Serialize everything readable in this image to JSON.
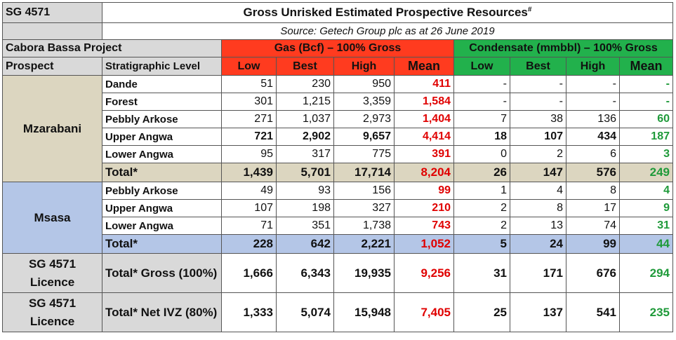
{
  "header": {
    "block": "SG 4571",
    "title": "Gross Unrisked Estimated Prospective Resources",
    "title_sup": "#",
    "source": "Source: Getech Group plc as at 26 June 2019",
    "project": "Cabora Bassa Project",
    "gas_group": "Gas (Bcf) – 100% Gross",
    "cond_group": "Condensate (mmbbl) – 100% Gross",
    "col_prospect": "Prospect",
    "col_strat": "Stratigraphic Level",
    "col_low": "Low",
    "col_best": "Best",
    "col_high": "High",
    "col_mean": "Mean"
  },
  "mzarabani": {
    "name": "Mzarabani",
    "rows": [
      {
        "level": "Dande",
        "gas": [
          "51",
          "230",
          "950",
          "411"
        ],
        "cond": [
          "-",
          "-",
          "-",
          "-"
        ]
      },
      {
        "level": "Forest",
        "gas": [
          "301",
          "1,215",
          "3,359",
          "1,584"
        ],
        "cond": [
          "-",
          "-",
          "-",
          "-"
        ]
      },
      {
        "level": "Pebbly Arkose",
        "gas": [
          "271",
          "1,037",
          "2,973",
          "1,404"
        ],
        "cond": [
          "7",
          "38",
          "136",
          "60"
        ]
      },
      {
        "level": "Upper Angwa",
        "gas": [
          "721",
          "2,902",
          "9,657",
          "4,414"
        ],
        "cond": [
          "18",
          "107",
          "434",
          "187"
        ]
      },
      {
        "level": "Lower Angwa",
        "gas": [
          "95",
          "317",
          "775",
          "391"
        ],
        "cond": [
          "0",
          "2",
          "6",
          "3"
        ]
      }
    ],
    "total": {
      "level": "Total*",
      "gas": [
        "1,439",
        "5,701",
        "17,714",
        "8,204"
      ],
      "cond": [
        "26",
        "147",
        "576",
        "249"
      ]
    }
  },
  "msasa": {
    "name": "Msasa",
    "rows": [
      {
        "level": "Pebbly Arkose",
        "gas": [
          "49",
          "93",
          "156",
          "99"
        ],
        "cond": [
          "1",
          "4",
          "8",
          "4"
        ]
      },
      {
        "level": "Upper Angwa",
        "gas": [
          "107",
          "198",
          "327",
          "210"
        ],
        "cond": [
          "2",
          "8",
          "17",
          "9"
        ]
      },
      {
        "level": "Lower Angwa",
        "gas": [
          "71",
          "351",
          "1,738",
          "743"
        ],
        "cond": [
          "2",
          "13",
          "74",
          "31"
        ]
      }
    ],
    "total": {
      "level": "Total*",
      "gas": [
        "228",
        "642",
        "2,221",
        "1,052"
      ],
      "cond": [
        "5",
        "24",
        "99",
        "44"
      ]
    }
  },
  "licence_gross": {
    "name": "SG 4571 Licence",
    "level": "Total* Gross (100%)",
    "gas": [
      "1,666",
      "6,343",
      "19,935",
      "9,256"
    ],
    "cond": [
      "31",
      "171",
      "676",
      "294"
    ]
  },
  "licence_net": {
    "name": "SG 4571 Licence",
    "level": "Total* Net IVZ (80%)",
    "gas": [
      "1,333",
      "5,074",
      "15,948",
      "7,405"
    ],
    "cond": [
      "25",
      "137",
      "541",
      "235"
    ]
  }
}
